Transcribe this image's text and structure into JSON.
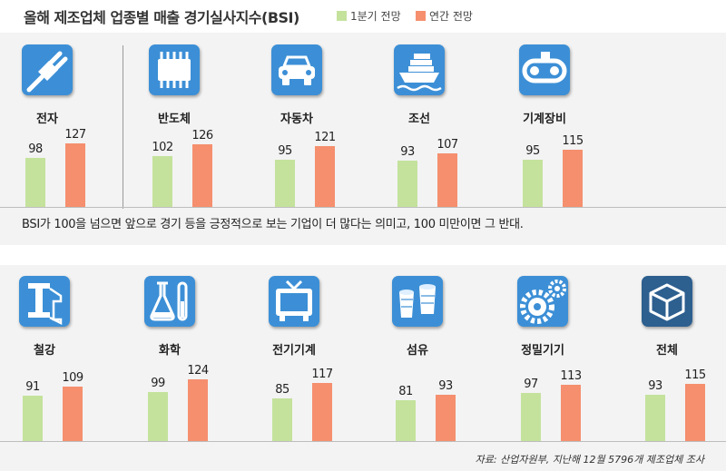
{
  "title": "올해 제조업체 업종별 매출 경기실사지수(BSI)",
  "legend": {
    "q1": "1분기 전망",
    "annual": "연간 전망"
  },
  "colors": {
    "q1": "#c4e29c",
    "annual": "#f58f6e",
    "icon_bg": "#3c8fd6",
    "icon_bg_total": "#2d5f8f"
  },
  "note": "BSI가 100을 넘으면 앞으로 경기 등을 긍정적으로 보는 기업이 더 많다는 의미고, 100 미만이면 그 반대.",
  "source": "자료: 산업자원부, 지난해 12월 5796개 제조업체 조사",
  "chart_data": {
    "type": "bar",
    "title": "올해 제조업체 업종별 매출 경기실사지수(BSI)",
    "categories": [
      "전자",
      "반도체",
      "자동차",
      "조선",
      "기계장비",
      "철강",
      "화학",
      "전기기계",
      "섬유",
      "정밀기기",
      "전체"
    ],
    "series": [
      {
        "name": "1분기 전망",
        "values": [
          98,
          102,
          95,
          93,
          95,
          91,
          99,
          85,
          81,
          97,
          93
        ]
      },
      {
        "name": "연간 전망",
        "values": [
          127,
          126,
          121,
          107,
          115,
          109,
          124,
          117,
          93,
          113,
          115
        ]
      }
    ],
    "icons": [
      "plug-icon",
      "chip-icon",
      "car-icon",
      "ship-icon",
      "conveyor-icon",
      "steel-beam-icon",
      "flask-icon",
      "tv-icon",
      "yarn-icon",
      "gear-icon",
      "cube-icon"
    ],
    "legend_position": "top",
    "grid": false
  }
}
